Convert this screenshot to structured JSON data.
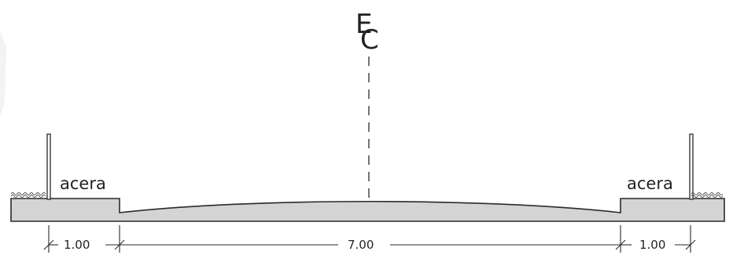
{
  "centerline": {
    "letter_top": "E",
    "letter_bottom": "C"
  },
  "sidewalk_left": {
    "label": "acera"
  },
  "sidewalk_right": {
    "label": "acera"
  },
  "dimensions": {
    "left_sidewalk": "1.00",
    "roadway": "7.00",
    "right_sidewalk": "1.00"
  },
  "colors": {
    "slab_fill": "#d4d4d4",
    "line": "#2a2a2a"
  }
}
